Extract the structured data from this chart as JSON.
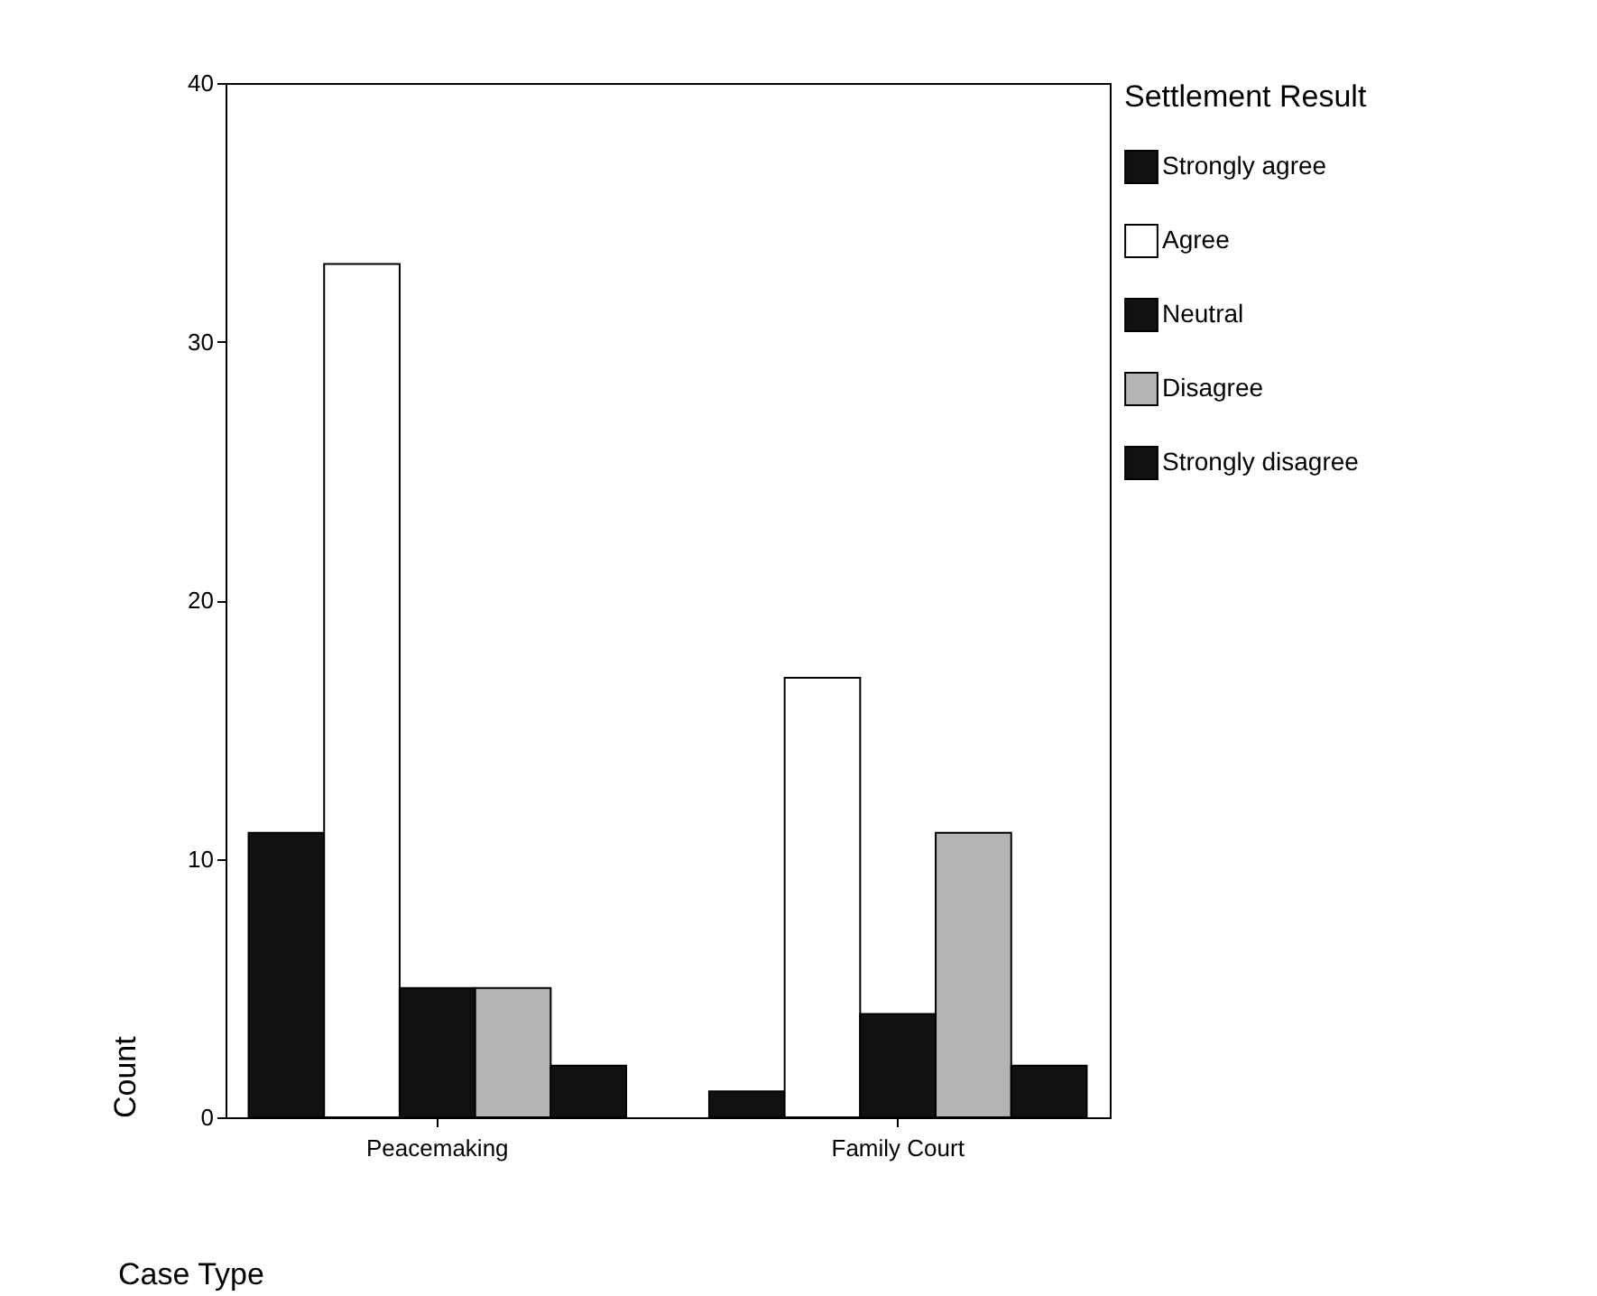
{
  "chart_data": {
    "type": "bar",
    "xlabel": "Case Type",
    "ylabel": "Count",
    "legend_title": "Settlement Result",
    "categories": [
      "Peacemaking",
      "Family Court"
    ],
    "series": [
      {
        "name": "Strongly agree",
        "color": "#111111",
        "values": [
          11,
          1
        ]
      },
      {
        "name": "Agree",
        "color": "#ffffff",
        "values": [
          33,
          17
        ]
      },
      {
        "name": "Neutral",
        "color": "#111111",
        "values": [
          5,
          4
        ]
      },
      {
        "name": "Disagree",
        "color": "#b4b4b4",
        "values": [
          5,
          11
        ]
      },
      {
        "name": "Strongly disagree",
        "color": "#111111",
        "values": [
          2,
          2
        ]
      }
    ],
    "ylim": [
      0,
      40
    ],
    "yticks": [
      0,
      10,
      20,
      30,
      40
    ],
    "legend": "right",
    "grid": false
  }
}
